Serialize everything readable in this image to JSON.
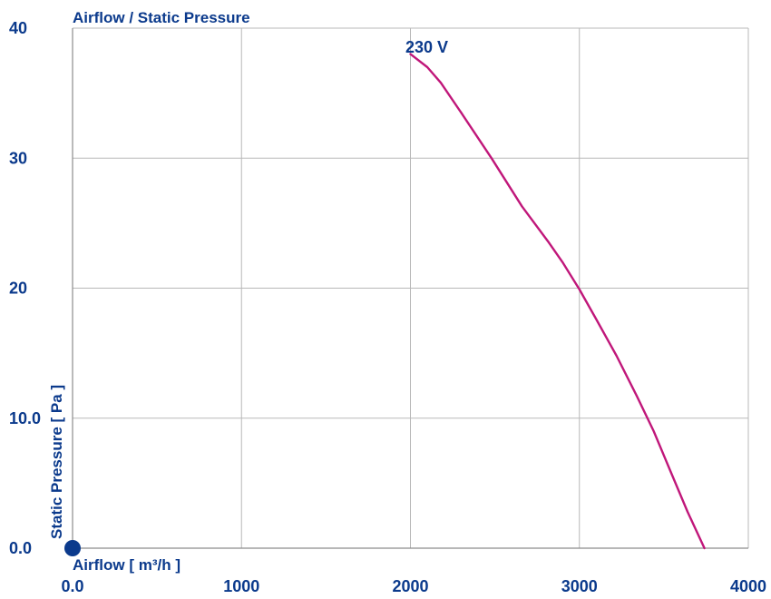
{
  "chart_data": {
    "type": "line",
    "title": "Airflow / Static Pressure",
    "xlabel": "Airflow [ m³/h ]",
    "ylabel": "Static Pressure [ Pa ]",
    "xlim": [
      0,
      4000
    ],
    "ylim": [
      0,
      40
    ],
    "x_ticks": [
      0,
      1000,
      2000,
      3000,
      4000
    ],
    "x_tick_labels": [
      "0.0",
      "1000",
      "2000",
      "3000",
      "4000"
    ],
    "y_ticks": [
      0,
      10,
      20,
      30,
      40
    ],
    "y_tick_labels": [
      "0.0",
      "10.0",
      "20",
      "30",
      "40"
    ],
    "grid": true,
    "series": [
      {
        "name": "230 V",
        "color": "#c0177a",
        "x": [
          2000,
          2100,
          2180,
          2300,
          2480,
          2660,
          2820,
          2900,
          3000,
          3100,
          3220,
          3340,
          3440,
          3540,
          3640,
          3740
        ],
        "y": [
          38,
          37,
          35.8,
          33.5,
          30,
          26.3,
          23.5,
          22,
          19.9,
          17.6,
          14.8,
          11.7,
          9,
          5.9,
          2.8,
          0
        ]
      }
    ],
    "origin_marker_color": "#0b3a8c",
    "text_color": "#0b3a8c",
    "grid_color": "#b8b8b8",
    "axis_color": "#8c8c8c"
  }
}
